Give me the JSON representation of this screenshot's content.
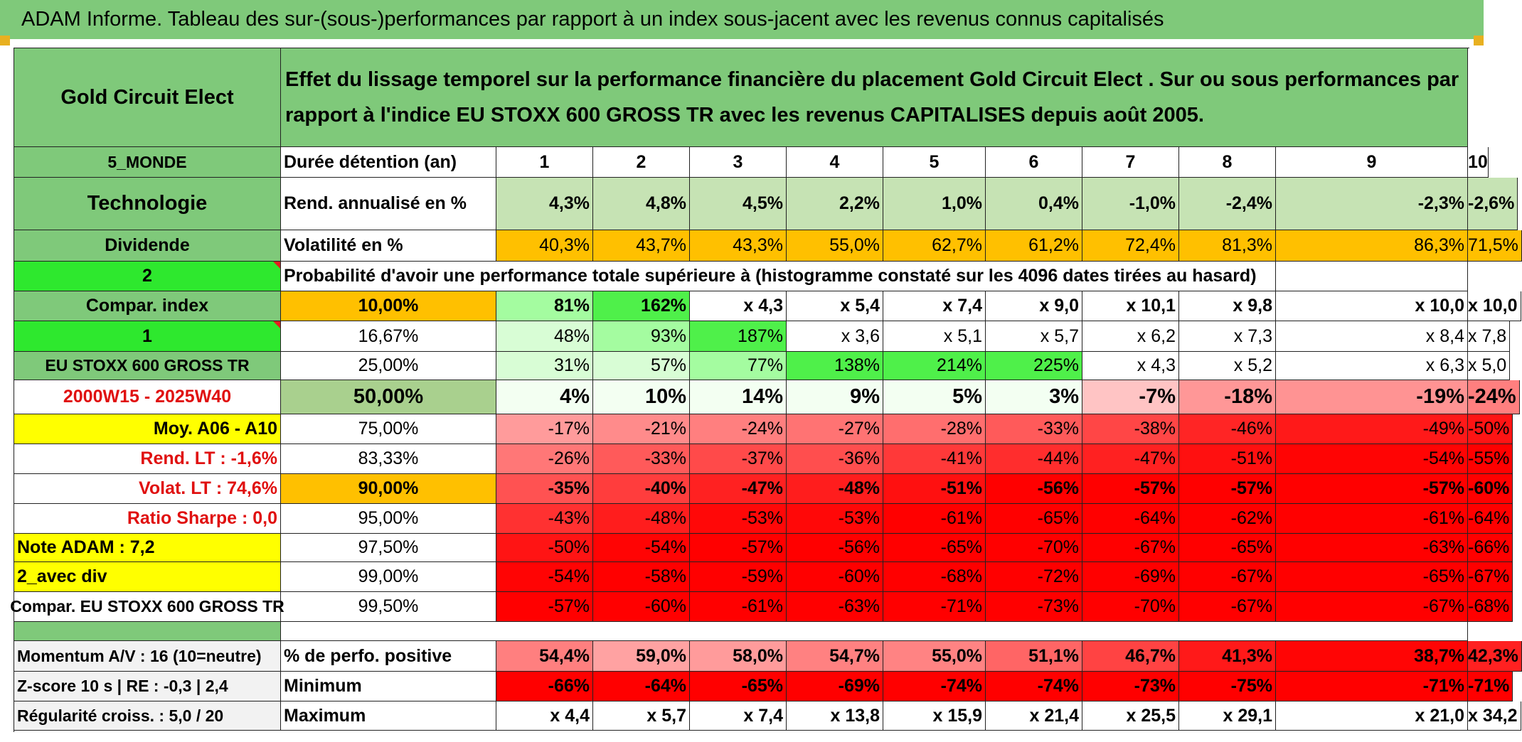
{
  "title": "ADAM Informe. Tableau des sur-(sous-)performances par rapport à un index sous-jacent avec les revenus connus capitalisés",
  "header": {
    "fund_name": "Gold Circuit Elect",
    "description": "Effet du lissage temporel sur la performance financière du placement Gold Circuit Elect . Sur ou sous performances par rapport à l'indice EU STOXX 600 GROSS TR avec les revenus CAPITALISES depuis août 2005."
  },
  "side": {
    "region": "5_MONDE",
    "sector": "Technologie",
    "dividend": "Dividende",
    "number_2": "2",
    "compar_index": "Compar. index",
    "number_1": "1",
    "index_name": "EU STOXX 600 GROSS TR",
    "period": "2000W15 - 2025W40",
    "moy": "Moy. A06 - A10",
    "rend_lt": "Rend. LT :    -1,6%",
    "volat_lt": "Volat. LT :   74,6%",
    "sharpe": "Ratio Sharpe :    0,0",
    "note": "Note ADAM : 7,2",
    "avec_div": "2_avec div",
    "compar_full": "Compar. EU STOXX 600 GROSS TR",
    "momentum": "Momentum A/V : 16 (10=neutre)",
    "zscore": "Z-score 10 s | RE : -0,3 | 2,4",
    "regularite": "Régularité croiss. : 5,0 / 20"
  },
  "labels": {
    "duree": "Durée détention (an)",
    "rend": "Rend. annualisé en %",
    "vol": "Volatilité en %",
    "proba": "Probabilité d'avoir une performance totale supérieure à (histogramme constaté sur les 4096 dates tirées au hasard)",
    "positive": "% de perfo. positive",
    "minimum": "Minimum",
    "maximum": "Maximum"
  },
  "years": [
    "1",
    "2",
    "3",
    "4",
    "5",
    "6",
    "7",
    "8",
    "9",
    "10"
  ],
  "rend": [
    "4,3%",
    "4,8%",
    "4,5%",
    "2,2%",
    "1,0%",
    "0,4%",
    "-1,0%",
    "-2,4%",
    "-2,3%",
    "-2,6%"
  ],
  "vol": [
    "40,3%",
    "43,7%",
    "43,3%",
    "55,0%",
    "62,7%",
    "61,2%",
    "72,4%",
    "81,3%",
    "86,3%",
    "71,5%"
  ],
  "proba_rows": [
    {
      "threshold": "10,00%",
      "values": [
        "81%",
        "162%",
        "x 4,3",
        "x 5,4",
        "x 7,4",
        "x 9,0",
        "x 10,1",
        "x 9,8",
        "x 10,0",
        "x 10,0"
      ]
    },
    {
      "threshold": "16,67%",
      "values": [
        "48%",
        "93%",
        "187%",
        "x 3,6",
        "x 5,1",
        "x 5,7",
        "x 6,2",
        "x 7,3",
        "x 8,4",
        "x 7,8"
      ]
    },
    {
      "threshold": "25,00%",
      "values": [
        "31%",
        "57%",
        "77%",
        "138%",
        "214%",
        "225%",
        "x 4,3",
        "x 5,2",
        "x 6,3",
        "x 5,0"
      ]
    },
    {
      "threshold": "50,00%",
      "values": [
        "4%",
        "10%",
        "14%",
        "9%",
        "5%",
        "3%",
        "-7%",
        "-18%",
        "-19%",
        "-24%"
      ]
    },
    {
      "threshold": "75,00%",
      "values": [
        "-17%",
        "-21%",
        "-24%",
        "-27%",
        "-28%",
        "-33%",
        "-38%",
        "-46%",
        "-49%",
        "-50%"
      ]
    },
    {
      "threshold": "83,33%",
      "values": [
        "-26%",
        "-33%",
        "-37%",
        "-36%",
        "-41%",
        "-44%",
        "-47%",
        "-51%",
        "-54%",
        "-55%"
      ]
    },
    {
      "threshold": "90,00%",
      "values": [
        "-35%",
        "-40%",
        "-47%",
        "-48%",
        "-51%",
        "-56%",
        "-57%",
        "-57%",
        "-57%",
        "-60%"
      ]
    },
    {
      "threshold": "95,00%",
      "values": [
        "-43%",
        "-48%",
        "-53%",
        "-53%",
        "-61%",
        "-65%",
        "-64%",
        "-62%",
        "-61%",
        "-64%"
      ]
    },
    {
      "threshold": "97,50%",
      "values": [
        "-50%",
        "-54%",
        "-57%",
        "-56%",
        "-65%",
        "-70%",
        "-67%",
        "-65%",
        "-63%",
        "-66%"
      ]
    },
    {
      "threshold": "99,00%",
      "values": [
        "-54%",
        "-58%",
        "-59%",
        "-60%",
        "-68%",
        "-72%",
        "-69%",
        "-67%",
        "-65%",
        "-67%"
      ]
    },
    {
      "threshold": "99,50%",
      "values": [
        "-57%",
        "-60%",
        "-61%",
        "-63%",
        "-71%",
        "-73%",
        "-70%",
        "-67%",
        "-67%",
        "-68%"
      ]
    }
  ],
  "positive": [
    "54,4%",
    "59,0%",
    "58,0%",
    "54,7%",
    "55,0%",
    "51,1%",
    "46,7%",
    "41,3%",
    "38,7%",
    "42,3%"
  ],
  "minimum": [
    "-66%",
    "-64%",
    "-65%",
    "-69%",
    "-74%",
    "-74%",
    "-73%",
    "-75%",
    "-71%",
    "-71%"
  ],
  "maximum": [
    "x 4,4",
    "x 5,7",
    "x 7,4",
    "x 13,8",
    "x 15,9",
    "x 21,4",
    "x 25,5",
    "x 29,1",
    "x 21,0",
    "x 34,2"
  ],
  "colors": {
    "header_green": "#7fc97a",
    "bright_green": "#2ee82e",
    "yellow": "#ffff00",
    "orange": "#ffc000",
    "red_text": "#e01010"
  }
}
